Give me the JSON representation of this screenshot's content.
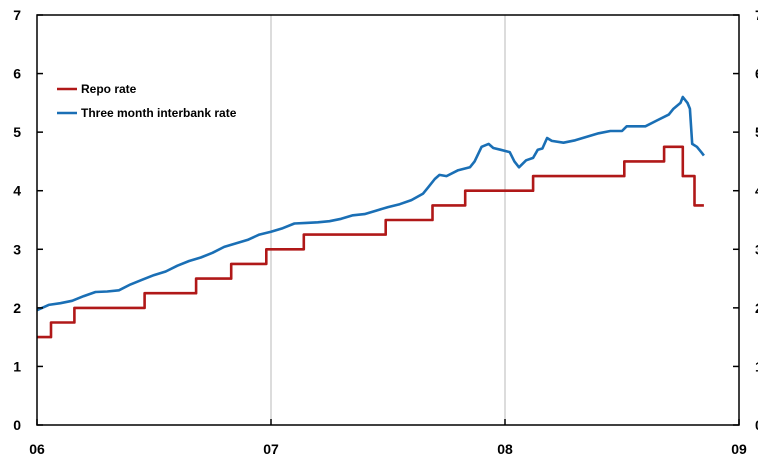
{
  "chart_data": {
    "type": "line",
    "title": "",
    "xlabel": "",
    "ylabel": "",
    "x_range": [
      2006.0,
      2009.0
    ],
    "ylim": [
      0,
      7
    ],
    "y_ticks": [
      0,
      1,
      2,
      3,
      4,
      5,
      6,
      7
    ],
    "y_tick_labels": [
      "0",
      "1",
      "2",
      "3",
      "4",
      "5",
      "6",
      "7"
    ],
    "x_ticks": [
      2006,
      2007,
      2008,
      2009
    ],
    "x_tick_labels": [
      "06",
      "07",
      "08",
      "09"
    ],
    "grid": "vertical",
    "legend_position": "top-left",
    "series": [
      {
        "name": "Repo rate",
        "color": "#b01818",
        "step": true,
        "points": [
          [
            2006.0,
            1.5
          ],
          [
            2006.06,
            1.75
          ],
          [
            2006.16,
            2.0
          ],
          [
            2006.46,
            2.25
          ],
          [
            2006.68,
            2.5
          ],
          [
            2006.83,
            2.75
          ],
          [
            2006.98,
            3.0
          ],
          [
            2007.14,
            3.25
          ],
          [
            2007.49,
            3.5
          ],
          [
            2007.69,
            3.75
          ],
          [
            2007.83,
            4.0
          ],
          [
            2008.12,
            4.25
          ],
          [
            2008.51,
            4.5
          ],
          [
            2008.68,
            4.75
          ],
          [
            2008.76,
            4.25
          ],
          [
            2008.81,
            3.75
          ],
          [
            2008.85,
            3.75
          ]
        ]
      },
      {
        "name": "Three month interbank rate",
        "color": "#1a6fb5",
        "step": false,
        "points": [
          [
            2006.0,
            1.96
          ],
          [
            2006.05,
            2.05
          ],
          [
            2006.1,
            2.08
          ],
          [
            2006.15,
            2.12
          ],
          [
            2006.2,
            2.2
          ],
          [
            2006.25,
            2.27
          ],
          [
            2006.3,
            2.28
          ],
          [
            2006.35,
            2.3
          ],
          [
            2006.4,
            2.4
          ],
          [
            2006.45,
            2.48
          ],
          [
            2006.5,
            2.56
          ],
          [
            2006.55,
            2.62
          ],
          [
            2006.6,
            2.72
          ],
          [
            2006.65,
            2.8
          ],
          [
            2006.7,
            2.86
          ],
          [
            2006.75,
            2.94
          ],
          [
            2006.8,
            3.04
          ],
          [
            2006.85,
            3.1
          ],
          [
            2006.9,
            3.16
          ],
          [
            2006.95,
            3.25
          ],
          [
            2007.0,
            3.3
          ],
          [
            2007.05,
            3.36
          ],
          [
            2007.1,
            3.44
          ],
          [
            2007.15,
            3.45
          ],
          [
            2007.2,
            3.46
          ],
          [
            2007.25,
            3.48
          ],
          [
            2007.3,
            3.52
          ],
          [
            2007.35,
            3.58
          ],
          [
            2007.4,
            3.6
          ],
          [
            2007.45,
            3.66
          ],
          [
            2007.5,
            3.72
          ],
          [
            2007.55,
            3.77
          ],
          [
            2007.6,
            3.84
          ],
          [
            2007.65,
            3.95
          ],
          [
            2007.67,
            4.05
          ],
          [
            2007.7,
            4.2
          ],
          [
            2007.72,
            4.27
          ],
          [
            2007.75,
            4.25
          ],
          [
            2007.8,
            4.35
          ],
          [
            2007.85,
            4.4
          ],
          [
            2007.87,
            4.5
          ],
          [
            2007.9,
            4.75
          ],
          [
            2007.93,
            4.8
          ],
          [
            2007.95,
            4.73
          ],
          [
            2007.98,
            4.7
          ],
          [
            2008.02,
            4.66
          ],
          [
            2008.04,
            4.5
          ],
          [
            2008.06,
            4.4
          ],
          [
            2008.09,
            4.52
          ],
          [
            2008.12,
            4.56
          ],
          [
            2008.14,
            4.7
          ],
          [
            2008.16,
            4.72
          ],
          [
            2008.18,
            4.9
          ],
          [
            2008.2,
            4.85
          ],
          [
            2008.25,
            4.82
          ],
          [
            2008.3,
            4.86
          ],
          [
            2008.35,
            4.92
          ],
          [
            2008.4,
            4.98
          ],
          [
            2008.45,
            5.02
          ],
          [
            2008.5,
            5.02
          ],
          [
            2008.52,
            5.1
          ],
          [
            2008.6,
            5.1
          ],
          [
            2008.65,
            5.2
          ],
          [
            2008.7,
            5.3
          ],
          [
            2008.72,
            5.4
          ],
          [
            2008.75,
            5.5
          ],
          [
            2008.76,
            5.6
          ],
          [
            2008.78,
            5.5
          ],
          [
            2008.79,
            5.4
          ],
          [
            2008.8,
            4.8
          ],
          [
            2008.82,
            4.75
          ],
          [
            2008.84,
            4.65
          ],
          [
            2008.85,
            4.6
          ]
        ]
      }
    ]
  }
}
